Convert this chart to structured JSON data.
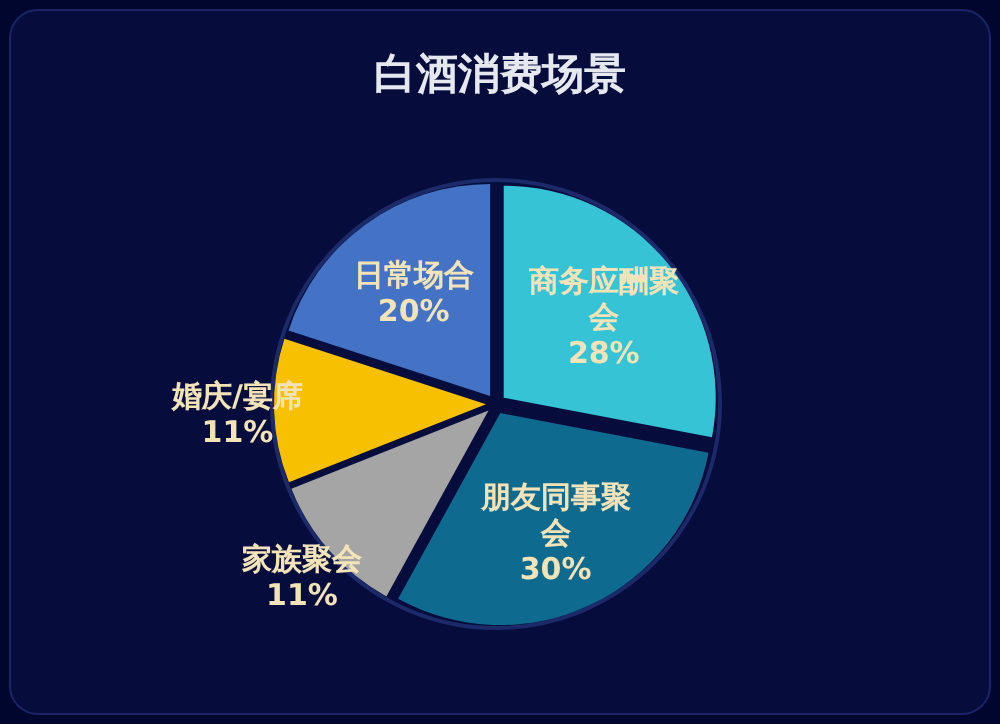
{
  "chart_data": {
    "type": "pie",
    "title": "白酒消费场景",
    "categories": [
      "商务应酬聚会",
      "朋友同事聚会",
      "家族聚会",
      "婚庆/宴席",
      "日常场合"
    ],
    "values": [
      28,
      30,
      11,
      11,
      20
    ],
    "colors": [
      "#36c3d6",
      "#0f6a8f",
      "#a5a5a5",
      "#f7c000",
      "#4472c4"
    ],
    "value_labels": [
      "28%",
      "30%",
      "11%",
      "11%",
      "20%"
    ]
  }
}
